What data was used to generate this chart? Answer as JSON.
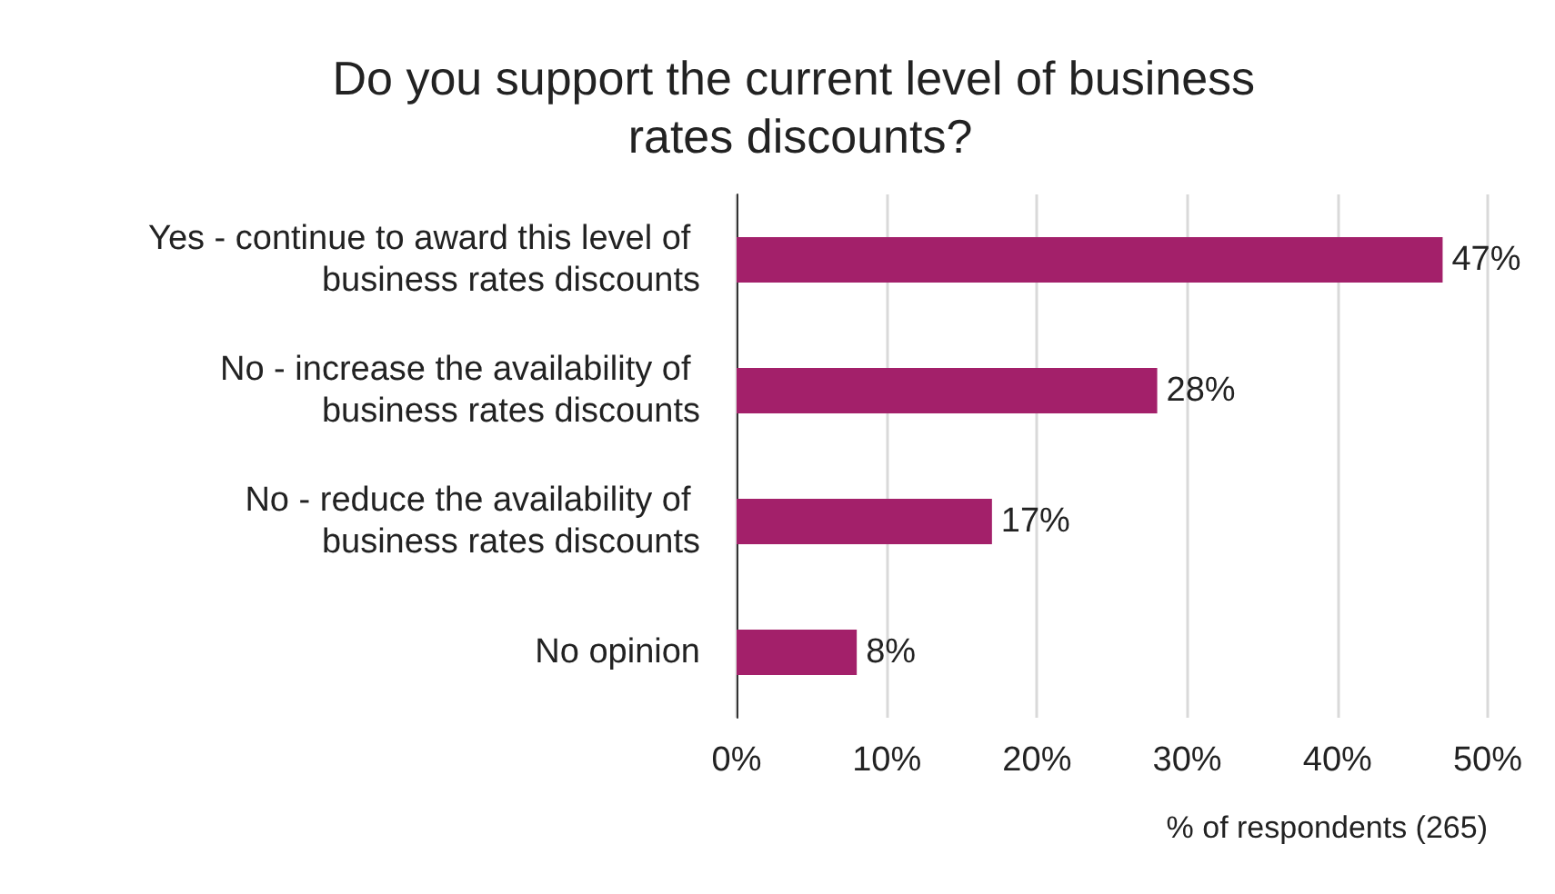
{
  "chart_data": {
    "type": "bar",
    "orientation": "horizontal",
    "title": "Do you support the current level of business rates discounts?",
    "xlabel": "% of respondents (265)",
    "categories": [
      "Yes - continue to award this level of business rates discounts",
      "No - increase the availability of business rates discounts",
      "No - reduce the availability of business rates discounts",
      "No opinion"
    ],
    "values": [
      47,
      28,
      17,
      8
    ],
    "value_labels": [
      "47%",
      "28%",
      "17%",
      "8%"
    ],
    "color": "#a3206a",
    "xlim": [
      0,
      50
    ],
    "xticks": [
      {
        "value": 0,
        "label": "0%"
      },
      {
        "value": 10,
        "label": "10%"
      },
      {
        "value": 20,
        "label": "20%"
      },
      {
        "value": 30,
        "label": "30%"
      },
      {
        "value": 40,
        "label": "40%"
      },
      {
        "value": 50,
        "label": "50%"
      }
    ],
    "grid": "x"
  }
}
